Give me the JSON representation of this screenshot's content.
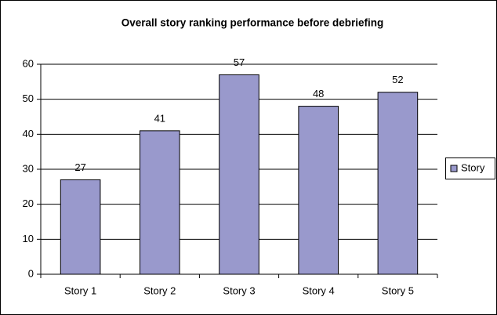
{
  "chart_data": {
    "type": "bar",
    "title": "Overall story ranking performance before debriefing",
    "categories": [
      "Story 1",
      "Story 2",
      "Story 3",
      "Story 4",
      "Story 5"
    ],
    "series": [
      {
        "name": "Story",
        "color": "#9999cc",
        "values": [
          27,
          41,
          57,
          48,
          52
        ]
      }
    ],
    "ylim": [
      0,
      60
    ],
    "yticks": [
      0,
      10,
      20,
      30,
      40,
      50,
      60
    ],
    "grid": true,
    "legend": "right"
  }
}
